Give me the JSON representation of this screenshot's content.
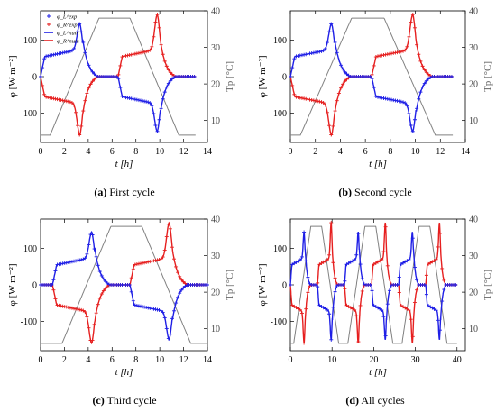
{
  "figure": {
    "panels": [
      {
        "tag": "(a)",
        "caption": "First cycle"
      },
      {
        "tag": "(b)",
        "caption": "Second cycle"
      },
      {
        "tag": "(c)",
        "caption": "Third cycle"
      },
      {
        "tag": "(d)",
        "caption": "All cycles"
      }
    ]
  },
  "colors": {
    "blue": "#1f1fe6",
    "red": "#e61f1f",
    "gray": "#808080",
    "axis": "#000000"
  },
  "chart_data": [
    {
      "type": "line",
      "panel": "a",
      "xlabel": "t [h]",
      "ylabel": "φ [W m⁻²]",
      "y2label": "Tp [°C]",
      "xlim": [
        0,
        14
      ],
      "ylim": [
        -180,
        180
      ],
      "y2lim": [
        4,
        40
      ],
      "xticks": [
        0,
        2,
        4,
        6,
        8,
        10,
        12,
        14
      ],
      "yticks": [
        -100,
        0,
        100
      ],
      "y2ticks": [
        10,
        20,
        30,
        40
      ],
      "legend": [
        "φ_L^exp",
        "φ_R^exp",
        "φ_L^num",
        "φ_R^num"
      ],
      "legend_position": "top-left",
      "cycle_start": 0,
      "end": 13,
      "series": [
        {
          "name": "φ_L (blue, exp + num)",
          "color": "blue",
          "shape": "heating +, cooling −",
          "peak": 145,
          "trough": -150,
          "peak_time_h": 3.3,
          "trough_time_h": 9.8
        },
        {
          "name": "φ_R (red, exp + num)",
          "color": "red",
          "shape": "heating −, cooling +",
          "peak": 170,
          "trough": -160,
          "peak_time_h": 9.8,
          "trough_time_h": 3.3
        },
        {
          "name": "Tp (gray, right axis)",
          "color": "gray",
          "x": [
            0,
            0.8,
            4.9,
            7.5,
            11.6,
            13
          ],
          "y": [
            6,
            6,
            38,
            38,
            6,
            6
          ]
        }
      ]
    },
    {
      "type": "line",
      "panel": "b",
      "xlabel": "t [h]",
      "ylabel": "φ [W m⁻²]",
      "y2label": "Tp [°C]",
      "xlim": [
        0,
        14
      ],
      "ylim": [
        -180,
        180
      ],
      "y2lim": [
        4,
        40
      ],
      "xticks": [
        0,
        2,
        4,
        6,
        8,
        10,
        12,
        14
      ],
      "yticks": [
        -100,
        0,
        100
      ],
      "y2ticks": [
        10,
        20,
        30,
        40
      ],
      "cycle_start": 0,
      "end": 13,
      "series": [
        {
          "name": "φ_L (blue)",
          "color": "blue",
          "peak": 145,
          "trough": -150,
          "peak_time_h": 3.3,
          "trough_time_h": 9.8
        },
        {
          "name": "φ_R (red)",
          "color": "red",
          "peak": 168,
          "trough": -160,
          "peak_time_h": 9.8,
          "trough_time_h": 3.3
        },
        {
          "name": "Tp (gray, right axis)",
          "color": "gray",
          "x": [
            0,
            0.8,
            4.9,
            7.5,
            11.6,
            13
          ],
          "y": [
            6,
            6,
            38,
            38,
            6,
            6
          ]
        }
      ]
    },
    {
      "type": "line",
      "panel": "c",
      "xlabel": "t [h]",
      "ylabel": "φ [W m⁻²]",
      "y2label": "Tp [°C]",
      "xlim": [
        0,
        14
      ],
      "ylim": [
        -180,
        180
      ],
      "y2lim": [
        4,
        40
      ],
      "xticks": [
        0,
        2,
        4,
        6,
        8,
        10,
        12,
        14
      ],
      "yticks": [
        -100,
        0,
        100
      ],
      "y2ticks": [
        10,
        20,
        30,
        40
      ],
      "cycle_start": 1.0,
      "end": 14,
      "series": [
        {
          "name": "φ_L (blue)",
          "color": "blue",
          "peak": 145,
          "trough": -150,
          "peak_time_h": 4.3,
          "trough_time_h": 10.8
        },
        {
          "name": "φ_R (red)",
          "color": "red",
          "peak": 170,
          "trough": -160,
          "peak_time_h": 10.8,
          "trough_time_h": 4.3
        },
        {
          "name": "Tp (gray, right axis)",
          "color": "gray",
          "x": [
            0,
            1.8,
            5.9,
            8.5,
            12.6,
            14
          ],
          "y": [
            6,
            6,
            38,
            38,
            6,
            6
          ]
        }
      ]
    },
    {
      "type": "line",
      "panel": "d",
      "xlabel": "t [h]",
      "ylabel": "φ [W m⁻²]",
      "y2label": "Tp [°C]",
      "xlim": [
        0,
        42
      ],
      "ylim": [
        -180,
        180
      ],
      "y2lim": [
        4,
        40
      ],
      "xticks": [
        0,
        10,
        20,
        30,
        40
      ],
      "yticks": [
        -100,
        0,
        100
      ],
      "y2ticks": [
        10,
        20,
        30,
        40
      ],
      "cycle_starts": [
        0,
        13,
        26
      ],
      "end": 40,
      "series": [
        {
          "name": "φ_L (blue)",
          "color": "blue",
          "peak": 145,
          "trough": -150
        },
        {
          "name": "φ_R (red)",
          "color": "red",
          "peak": 170,
          "trough": -160
        },
        {
          "name": "Tp (gray, right axis)",
          "color": "gray",
          "note": "three trapezoidal cycles 6–38 °C"
        }
      ]
    }
  ]
}
